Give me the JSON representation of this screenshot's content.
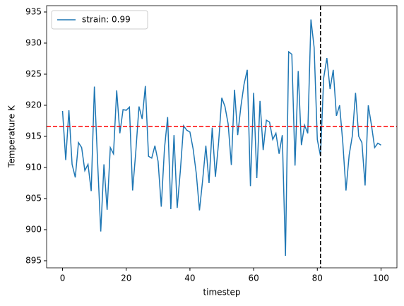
{
  "chart_data": {
    "type": "line",
    "xlabel": "timestep",
    "ylabel": "Temperature K",
    "x": [
      0,
      1,
      2,
      3,
      4,
      5,
      6,
      7,
      8,
      9,
      10,
      11,
      12,
      13,
      14,
      15,
      16,
      17,
      18,
      19,
      20,
      21,
      22,
      23,
      24,
      25,
      26,
      27,
      28,
      29,
      30,
      31,
      32,
      33,
      34,
      35,
      36,
      37,
      38,
      39,
      40,
      41,
      42,
      43,
      44,
      45,
      46,
      47,
      48,
      49,
      50,
      51,
      52,
      53,
      54,
      55,
      56,
      57,
      58,
      59,
      60,
      61,
      62,
      63,
      64,
      65,
      66,
      67,
      68,
      69,
      70,
      71,
      72,
      73,
      74,
      75,
      76,
      77,
      78,
      79,
      80,
      81,
      82,
      83,
      84,
      85,
      86,
      87,
      88,
      89,
      90,
      91,
      92,
      93,
      94,
      95,
      96,
      97,
      98,
      99,
      100
    ],
    "series": [
      {
        "name": "strain: 0.99",
        "color": "#1f77b4",
        "values": [
          919.1,
          911.2,
          919.2,
          910.5,
          908.4,
          914,
          913.2,
          909.5,
          910.5,
          906.2,
          923,
          911,
          899.7,
          910.5,
          903.2,
          913.2,
          912.2,
          922.4,
          915.5,
          919.3,
          919.2,
          919.7,
          906.3,
          912.5,
          919.8,
          917.8,
          923.1,
          911.8,
          911.5,
          913.5,
          911,
          903.7,
          913,
          918.1,
          903.3,
          915.2,
          903.5,
          909.5,
          916.7,
          916,
          915.7,
          913,
          909,
          903.1,
          908,
          913.5,
          907.5,
          916.4,
          908.5,
          914,
          921.2,
          919.8,
          917,
          910.4,
          922.5,
          915.2,
          919.8,
          923.4,
          925.7,
          907,
          922,
          908.3,
          920.7,
          912.8,
          917.6,
          917.3,
          914.5,
          915.5,
          912.2,
          915.2,
          895.8,
          928.6,
          928.2,
          910.3,
          925.5,
          913.6,
          916.8,
          915.5,
          933.8,
          929.3,
          914.5,
          911.8,
          924.4,
          927.6,
          922.6,
          925.7,
          918.3,
          920,
          914,
          906.3,
          912,
          915.1,
          922,
          915,
          914,
          907.1,
          920,
          916.8,
          913.2,
          913.9,
          913.6
        ]
      }
    ],
    "hline": {
      "value": 916.6,
      "color": "#ff0000"
    },
    "vline": {
      "value": 81,
      "color": "#000000"
    },
    "xlim": [
      -5,
      105
    ],
    "ylim": [
      893.86,
      936.02
    ],
    "xticks": [
      0,
      20,
      40,
      60,
      80,
      100
    ],
    "yticks": [
      895,
      900,
      905,
      910,
      915,
      920,
      925,
      930,
      935
    ],
    "legend": "upper left"
  }
}
